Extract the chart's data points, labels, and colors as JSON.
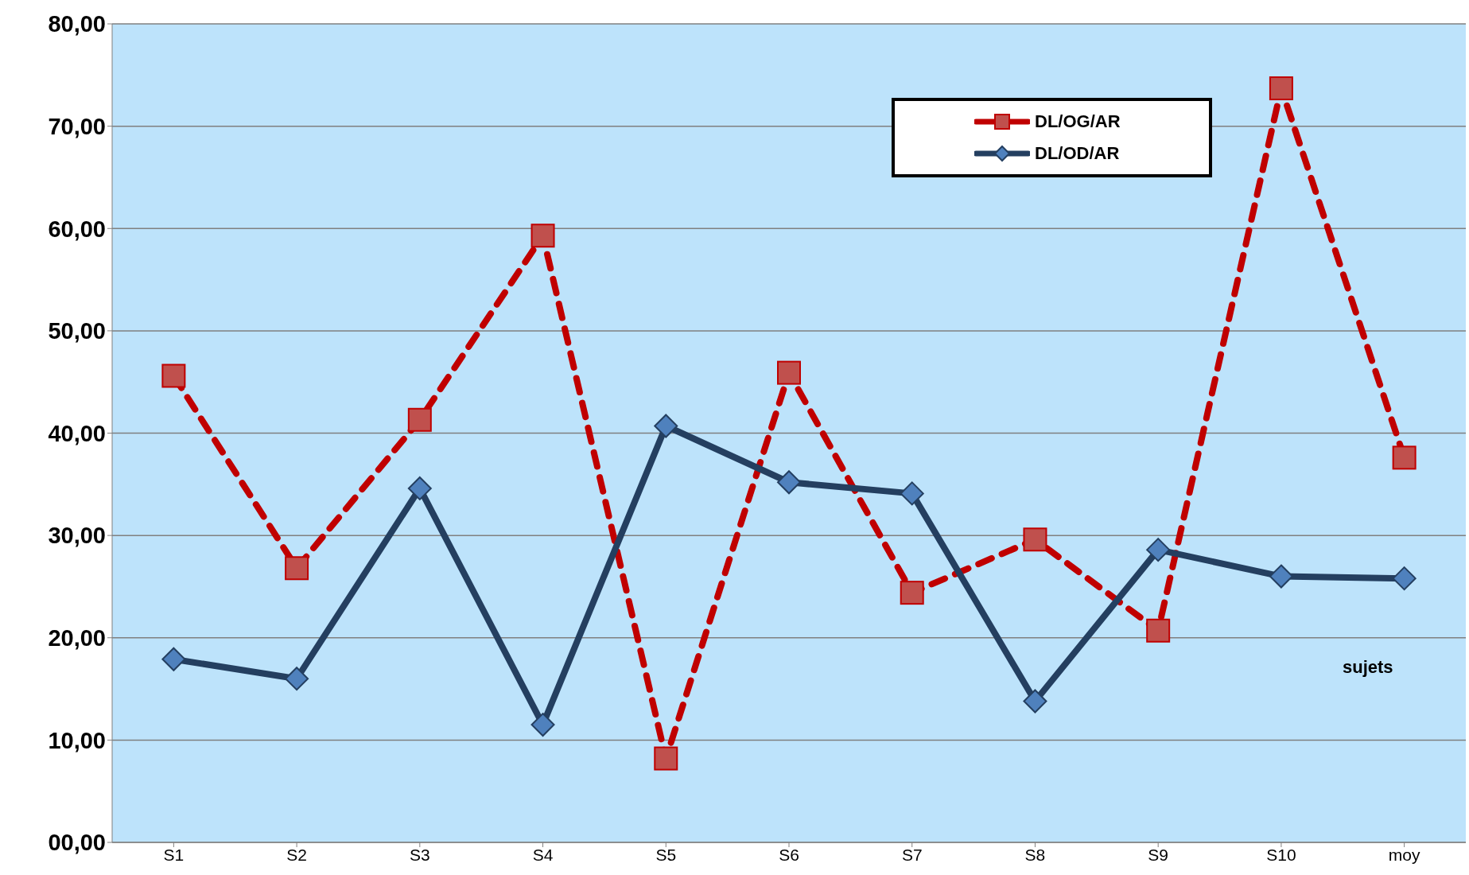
{
  "chart_data": {
    "type": "line",
    "xlabel": "sujets",
    "categories": [
      "S1",
      "S2",
      "S3",
      "S4",
      "S5",
      "S6",
      "S7",
      "S8",
      "S9",
      "S10",
      "moy"
    ],
    "series": [
      {
        "name": "DL/OG/AR",
        "color": "#c00000",
        "marker": "square",
        "line_style": "dashed",
        "values": [
          45.6,
          26.8,
          41.3,
          59.3,
          8.2,
          45.9,
          24.4,
          29.6,
          20.7,
          73.7,
          37.6
        ]
      },
      {
        "name": "DL/OD/AR",
        "color": "#243f60",
        "marker": "diamond",
        "line_style": "solid",
        "values": [
          17.9,
          16.0,
          34.6,
          11.5,
          40.7,
          35.2,
          34.1,
          13.8,
          28.6,
          26.0,
          25.8
        ]
      }
    ],
    "ylim": [
      0,
      80
    ],
    "yticks": [
      {
        "value": 0,
        "label": "00,00"
      },
      {
        "value": 10,
        "label": "10,00"
      },
      {
        "value": 20,
        "label": "20,00"
      },
      {
        "value": 30,
        "label": "30,00"
      },
      {
        "value": 40,
        "label": "40,00"
      },
      {
        "value": 50,
        "label": "50,00"
      },
      {
        "value": 60,
        "label": "60,00"
      },
      {
        "value": 70,
        "label": "70,00"
      },
      {
        "value": 80,
        "label": "80,00"
      }
    ],
    "grid": "y",
    "legend": "top right"
  }
}
